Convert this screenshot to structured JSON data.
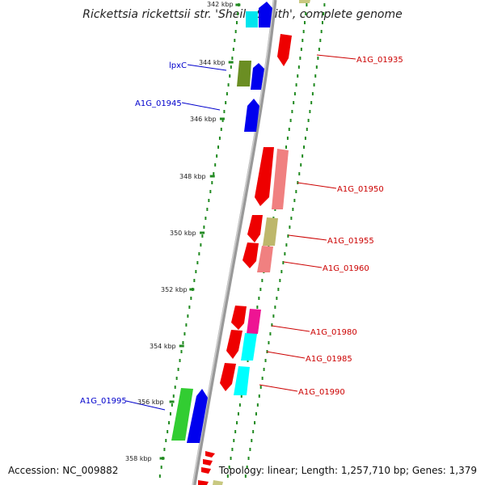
{
  "title": "Rickettsia rickettsii str. 'Sheila Smith', complete genome",
  "footer": {
    "accession": "Accession: NC_009882",
    "summary": "Topology: linear; Length: 1,257,710 bp; Genes: 1,379"
  },
  "colors": {
    "backbone": "#888888",
    "tick": "#228b22",
    "label_forward": "#0000cc",
    "label_reverse": "#cc0000"
  },
  "ticks": [
    "342 kbp",
    "344 kbp",
    "346 kbp",
    "348 kbp",
    "350 kbp",
    "352 kbp",
    "354 kbp",
    "356 kbp",
    "358 kbp"
  ],
  "gene_labels": [
    "lpxC",
    "A1G_01945",
    "A1G_01935",
    "A1G_01950",
    "A1G_01955",
    "A1G_01960",
    "A1G_01980",
    "A1G_01985",
    "A1G_01990",
    "A1G_01995"
  ]
}
